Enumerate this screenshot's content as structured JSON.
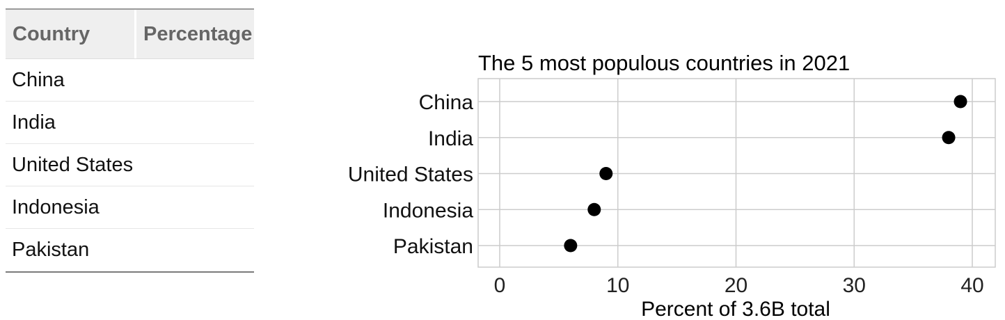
{
  "table": {
    "headers": [
      "Country",
      "Percentage"
    ],
    "rows": [
      {
        "country": "China",
        "percentage": ""
      },
      {
        "country": "India",
        "percentage": ""
      },
      {
        "country": "United States",
        "percentage": ""
      },
      {
        "country": "Indonesia",
        "percentage": ""
      },
      {
        "country": "Pakistan",
        "percentage": ""
      }
    ]
  },
  "chart_data": {
    "type": "scatter",
    "title": "The 5 most populous countries in 2021",
    "xlabel": "Percent of 3.6B total",
    "ylabel": "",
    "categories": [
      "China",
      "India",
      "United States",
      "Indonesia",
      "Pakistan"
    ],
    "values": [
      39,
      38,
      9,
      8,
      6
    ],
    "xlim": [
      -2,
      41.5
    ],
    "xticks": [
      0,
      10,
      20,
      30,
      40
    ],
    "grid": true,
    "legend": "none",
    "point_color": "#000000",
    "grid_color": "#cccccc"
  }
}
